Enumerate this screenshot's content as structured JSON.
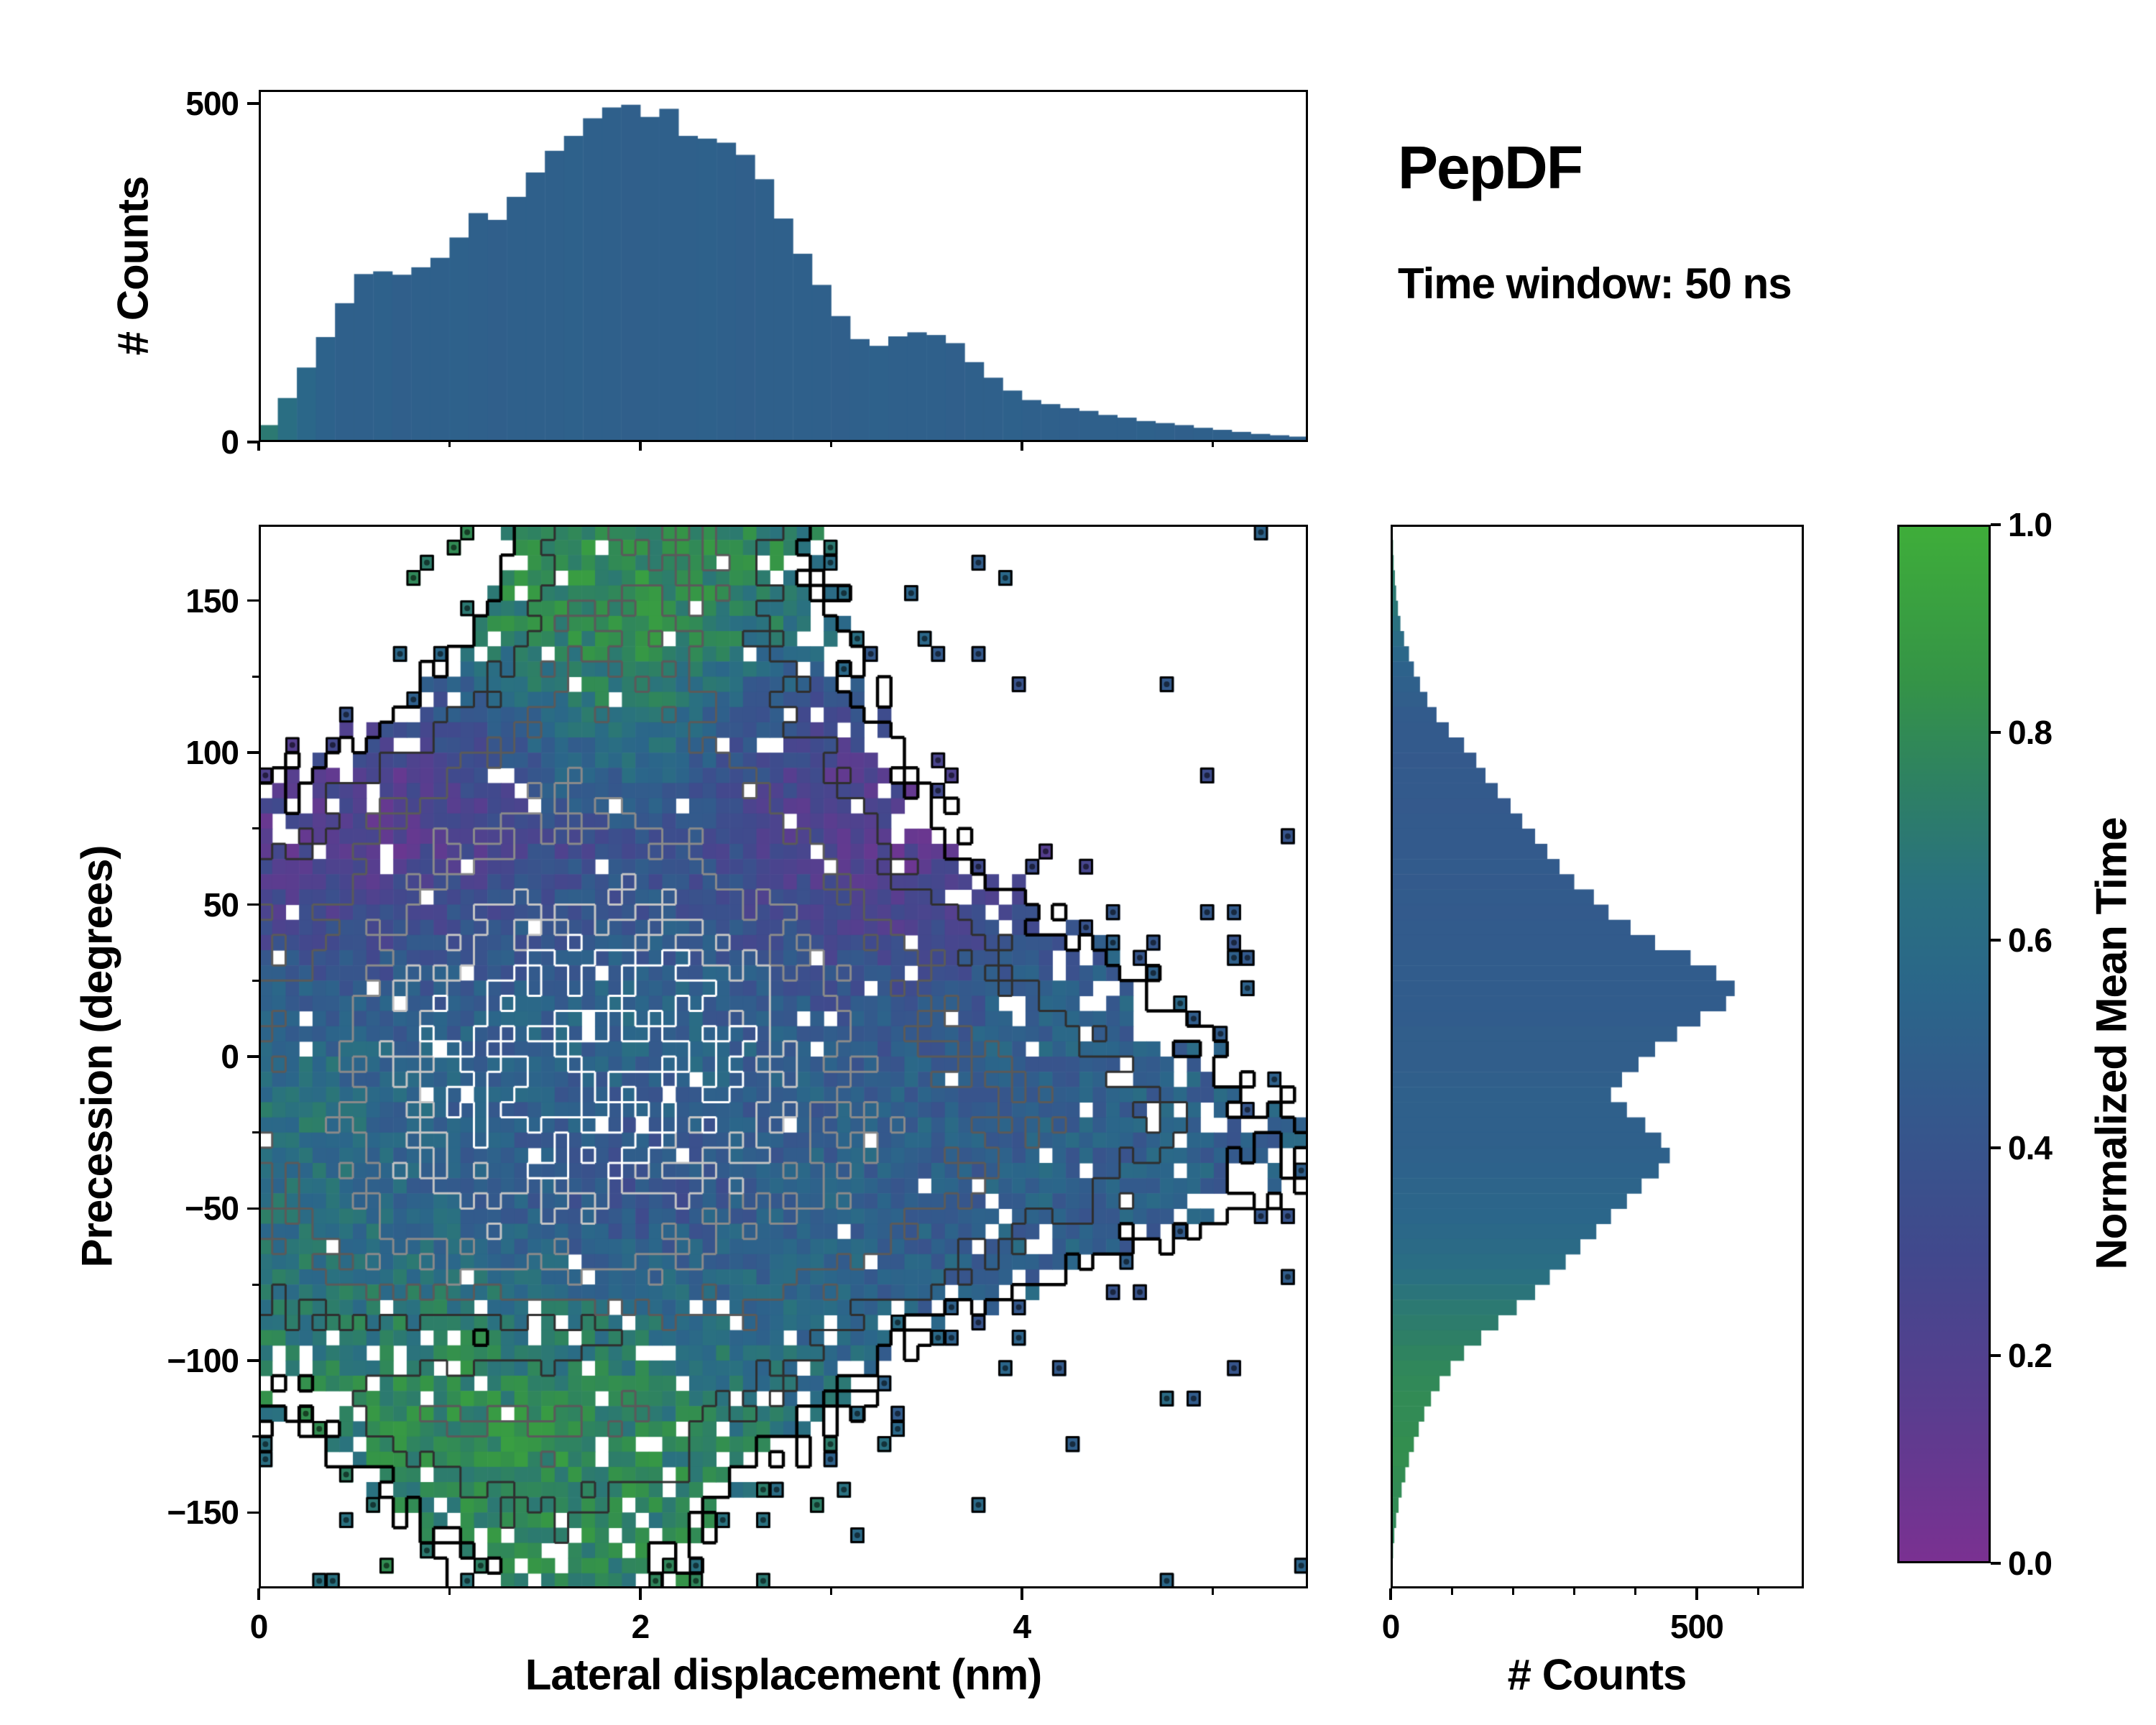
{
  "title": "PepDF",
  "subtitle": "Time window: 50 ns",
  "colors": {
    "axis": "#000000",
    "background": "#ffffff",
    "contour_colors": [
      "#000000",
      "#2f2f2f",
      "#5a5a5a",
      "#8a8a8a",
      "#c4c4c4",
      "#ffffff"
    ],
    "colormap_stops": [
      [
        0.0,
        "#7b3192"
      ],
      [
        0.15,
        "#5a3d8f"
      ],
      [
        0.3,
        "#41498d"
      ],
      [
        0.45,
        "#335a8c"
      ],
      [
        0.55,
        "#2b668a"
      ],
      [
        0.65,
        "#2a7180"
      ],
      [
        0.75,
        "#2e8163"
      ],
      [
        0.85,
        "#359447"
      ],
      [
        1.0,
        "#3fae3a"
      ]
    ]
  },
  "chart_data": {
    "type": "heatmap",
    "title": "PepDF",
    "annotation": "Time window: 50 ns",
    "main": {
      "type": "heatmap",
      "xlabel": "Lateral displacement (nm)",
      "ylabel": "Precession (degrees)",
      "xlim": [
        0,
        5.5
      ],
      "ylim": [
        -175,
        175
      ],
      "xtick_values": [
        0,
        2,
        4
      ],
      "xtick_labels": [
        "0",
        "2",
        "4"
      ],
      "xtick_minor": [
        1,
        3,
        5
      ],
      "ytick_values": [
        -150,
        -100,
        -50,
        0,
        50,
        100,
        150
      ],
      "ytick_labels": [
        "−150",
        "−100",
        "−50",
        "0",
        "50",
        "100",
        "150"
      ],
      "ytick_minor": [
        -125,
        -75,
        -25,
        25,
        75,
        125
      ],
      "grid_x_centers": [
        0.23,
        0.69,
        1.15,
        1.6,
        2.06,
        2.52,
        2.98,
        3.44,
        3.9,
        4.35,
        4.81,
        5.27
      ],
      "grid_y_centers": [
        163,
        140,
        117,
        93,
        70,
        47,
        23,
        0,
        -23,
        -47,
        -70,
        -93,
        -117,
        -140,
        -163
      ],
      "density_grid": [
        [
          0,
          0,
          0.05,
          0.45,
          0.6,
          0.5,
          0.15,
          0,
          0,
          0,
          0,
          0
        ],
        [
          0,
          0,
          0.2,
          0.55,
          0.62,
          0.45,
          0.2,
          0.02,
          0,
          0,
          0,
          0
        ],
        [
          0.02,
          0.15,
          0.4,
          0.6,
          0.6,
          0.45,
          0.3,
          0.08,
          0,
          0,
          0,
          0
        ],
        [
          0.18,
          0.45,
          0.62,
          0.68,
          0.65,
          0.58,
          0.42,
          0.15,
          0.03,
          0,
          0,
          0
        ],
        [
          0.35,
          0.62,
          0.76,
          0.8,
          0.78,
          0.68,
          0.55,
          0.3,
          0.08,
          0.02,
          0,
          0
        ],
        [
          0.5,
          0.74,
          0.86,
          0.9,
          0.88,
          0.78,
          0.65,
          0.48,
          0.28,
          0.12,
          0.05,
          0
        ],
        [
          0.58,
          0.82,
          0.95,
          1.0,
          1.0,
          0.92,
          0.75,
          0.58,
          0.42,
          0.28,
          0.12,
          0.05
        ],
        [
          0.62,
          0.86,
          1.0,
          1.0,
          1.0,
          0.95,
          0.78,
          0.62,
          0.52,
          0.4,
          0.24,
          0.12
        ],
        [
          0.62,
          0.85,
          0.96,
          1.0,
          0.96,
          0.9,
          0.78,
          0.66,
          0.58,
          0.5,
          0.38,
          0.22
        ],
        [
          0.58,
          0.8,
          0.86,
          0.9,
          0.86,
          0.8,
          0.72,
          0.6,
          0.52,
          0.42,
          0.3,
          0.15
        ],
        [
          0.48,
          0.72,
          0.76,
          0.76,
          0.72,
          0.66,
          0.6,
          0.46,
          0.3,
          0.16,
          0.06,
          0
        ],
        [
          0.3,
          0.24,
          0.22,
          0.28,
          0.45,
          0.5,
          0.36,
          0.16,
          0.05,
          0,
          0,
          0
        ],
        [
          0.2,
          0.48,
          0.6,
          0.6,
          0.52,
          0.38,
          0.2,
          0.06,
          0,
          0,
          0,
          0
        ],
        [
          0.05,
          0.22,
          0.42,
          0.46,
          0.36,
          0.2,
          0.06,
          0,
          0,
          0,
          0,
          0
        ],
        [
          0,
          0.06,
          0.22,
          0.32,
          0.22,
          0.06,
          0,
          0,
          0,
          0,
          0,
          0
        ]
      ],
      "value_grid": [
        [
          0.75,
          0.75,
          0.78,
          0.8,
          0.82,
          0.78,
          0.72,
          0.6,
          0.55,
          0.5,
          0.5,
          0.5
        ],
        [
          0.6,
          0.62,
          0.72,
          0.8,
          0.8,
          0.72,
          0.62,
          0.55,
          0.5,
          0.5,
          0.5,
          0.5
        ],
        [
          0.38,
          0.35,
          0.45,
          0.68,
          0.72,
          0.5,
          0.35,
          0.35,
          0.4,
          0.45,
          0.45,
          0.45
        ],
        [
          0.22,
          0.2,
          0.28,
          0.5,
          0.55,
          0.35,
          0.22,
          0.2,
          0.28,
          0.35,
          0.4,
          0.4
        ],
        [
          0.18,
          0.17,
          0.22,
          0.32,
          0.38,
          0.3,
          0.2,
          0.15,
          0.22,
          0.3,
          0.35,
          0.4
        ],
        [
          0.28,
          0.3,
          0.35,
          0.42,
          0.42,
          0.36,
          0.26,
          0.22,
          0.32,
          0.4,
          0.45,
          0.45
        ],
        [
          0.45,
          0.42,
          0.46,
          0.5,
          0.5,
          0.46,
          0.4,
          0.38,
          0.45,
          0.5,
          0.5,
          0.5
        ],
        [
          0.6,
          0.52,
          0.5,
          0.52,
          0.52,
          0.5,
          0.46,
          0.46,
          0.5,
          0.5,
          0.5,
          0.5
        ],
        [
          0.65,
          0.55,
          0.5,
          0.46,
          0.44,
          0.46,
          0.5,
          0.5,
          0.5,
          0.5,
          0.5,
          0.5
        ],
        [
          0.62,
          0.56,
          0.5,
          0.42,
          0.38,
          0.46,
          0.5,
          0.5,
          0.5,
          0.5,
          0.5,
          0.5
        ],
        [
          0.66,
          0.64,
          0.6,
          0.55,
          0.52,
          0.55,
          0.52,
          0.5,
          0.5,
          0.5,
          0.5,
          0.5
        ],
        [
          0.7,
          0.72,
          0.74,
          0.7,
          0.66,
          0.62,
          0.56,
          0.52,
          0.5,
          0.5,
          0.5,
          0.5
        ],
        [
          0.74,
          0.78,
          0.8,
          0.78,
          0.74,
          0.7,
          0.62,
          0.55,
          0.5,
          0.5,
          0.5,
          0.5
        ],
        [
          0.72,
          0.76,
          0.8,
          0.8,
          0.78,
          0.72,
          0.62,
          0.55,
          0.5,
          0.5,
          0.5,
          0.5
        ],
        [
          0.7,
          0.74,
          0.78,
          0.8,
          0.76,
          0.7,
          0.6,
          0.55,
          0.5,
          0.5,
          0.5,
          0.5
        ]
      ],
      "contour_levels": [
        0.2,
        0.38,
        0.56,
        0.74,
        0.88,
        0.97
      ]
    },
    "top_hist": {
      "type": "bar",
      "ylabel": "# Counts",
      "ytick_values": [
        0,
        500
      ],
      "ytick_labels": [
        "0",
        "500"
      ],
      "ylim": [
        0,
        520
      ],
      "bin_width": 0.1,
      "x_start": 0,
      "counts": [
        25,
        65,
        110,
        155,
        205,
        248,
        252,
        247,
        258,
        272,
        302,
        338,
        328,
        362,
        398,
        430,
        452,
        478,
        494,
        498,
        480,
        492,
        452,
        448,
        442,
        424,
        388,
        330,
        278,
        232,
        186,
        152,
        142,
        156,
        162,
        158,
        146,
        118,
        95,
        76,
        62,
        56,
        50,
        46,
        40,
        36,
        31,
        28,
        25,
        21,
        18,
        15,
        12,
        10,
        8
      ],
      "color_values": [
        0.7,
        0.62,
        0.56,
        0.52,
        0.5,
        0.5,
        0.51,
        0.49,
        0.5,
        0.5,
        0.51,
        0.5,
        0.49,
        0.5,
        0.5,
        0.5,
        0.51,
        0.5,
        0.5,
        0.49,
        0.5,
        0.5,
        0.5,
        0.51,
        0.5,
        0.49,
        0.5,
        0.5,
        0.5,
        0.5,
        0.49,
        0.5,
        0.51,
        0.5,
        0.5,
        0.5,
        0.49,
        0.5,
        0.5,
        0.51,
        0.5,
        0.5,
        0.49,
        0.5,
        0.5,
        0.5,
        0.51,
        0.5,
        0.49,
        0.5,
        0.5,
        0.5,
        0.5,
        0.49,
        0.5
      ]
    },
    "right_hist": {
      "type": "bar",
      "xlabel": "# Counts",
      "xtick_values": [
        0,
        500
      ],
      "xtick_labels": [
        "0",
        "500"
      ],
      "xtick_minor": [
        100,
        200,
        300,
        400,
        600
      ],
      "xlim": [
        0,
        675
      ],
      "bin_width": 5,
      "y_start": 175,
      "counts": [
        3,
        4,
        5,
        7,
        9,
        12,
        16,
        22,
        30,
        38,
        48,
        60,
        75,
        95,
        120,
        140,
        155,
        175,
        196,
        215,
        236,
        256,
        276,
        300,
        332,
        356,
        392,
        432,
        490,
        532,
        562,
        548,
        506,
        468,
        432,
        405,
        378,
        360,
        386,
        416,
        442,
        456,
        438,
        410,
        386,
        360,
        336,
        310,
        286,
        260,
        236,
        206,
        176,
        148,
        120,
        98,
        80,
        66,
        55,
        46,
        38,
        30,
        24,
        18,
        13,
        9,
        6,
        4,
        3,
        2
      ],
      "color_values": [
        0.78,
        0.76,
        0.74,
        0.72,
        0.7,
        0.68,
        0.65,
        0.6,
        0.56,
        0.52,
        0.5,
        0.48,
        0.46,
        0.45,
        0.45,
        0.44,
        0.45,
        0.45,
        0.44,
        0.45,
        0.45,
        0.45,
        0.46,
        0.45,
        0.46,
        0.45,
        0.46,
        0.46,
        0.47,
        0.47,
        0.47,
        0.47,
        0.47,
        0.48,
        0.48,
        0.48,
        0.49,
        0.5,
        0.5,
        0.5,
        0.5,
        0.51,
        0.52,
        0.53,
        0.54,
        0.55,
        0.57,
        0.59,
        0.61,
        0.64,
        0.67,
        0.7,
        0.72,
        0.74,
        0.76,
        0.78,
        0.79,
        0.8,
        0.8,
        0.81,
        0.82,
        0.82,
        0.81,
        0.8,
        0.8,
        0.79,
        0.78,
        0.77,
        0.76,
        0.75
      ]
    },
    "colorbar": {
      "label": "Normalized Mean Time",
      "range": [
        0,
        1
      ],
      "tick_values": [
        0,
        0.2,
        0.4,
        0.6,
        0.8,
        1
      ],
      "tick_labels": [
        "0.0",
        "0.2",
        "0.4",
        "0.6",
        "0.8",
        "1.0"
      ]
    }
  }
}
